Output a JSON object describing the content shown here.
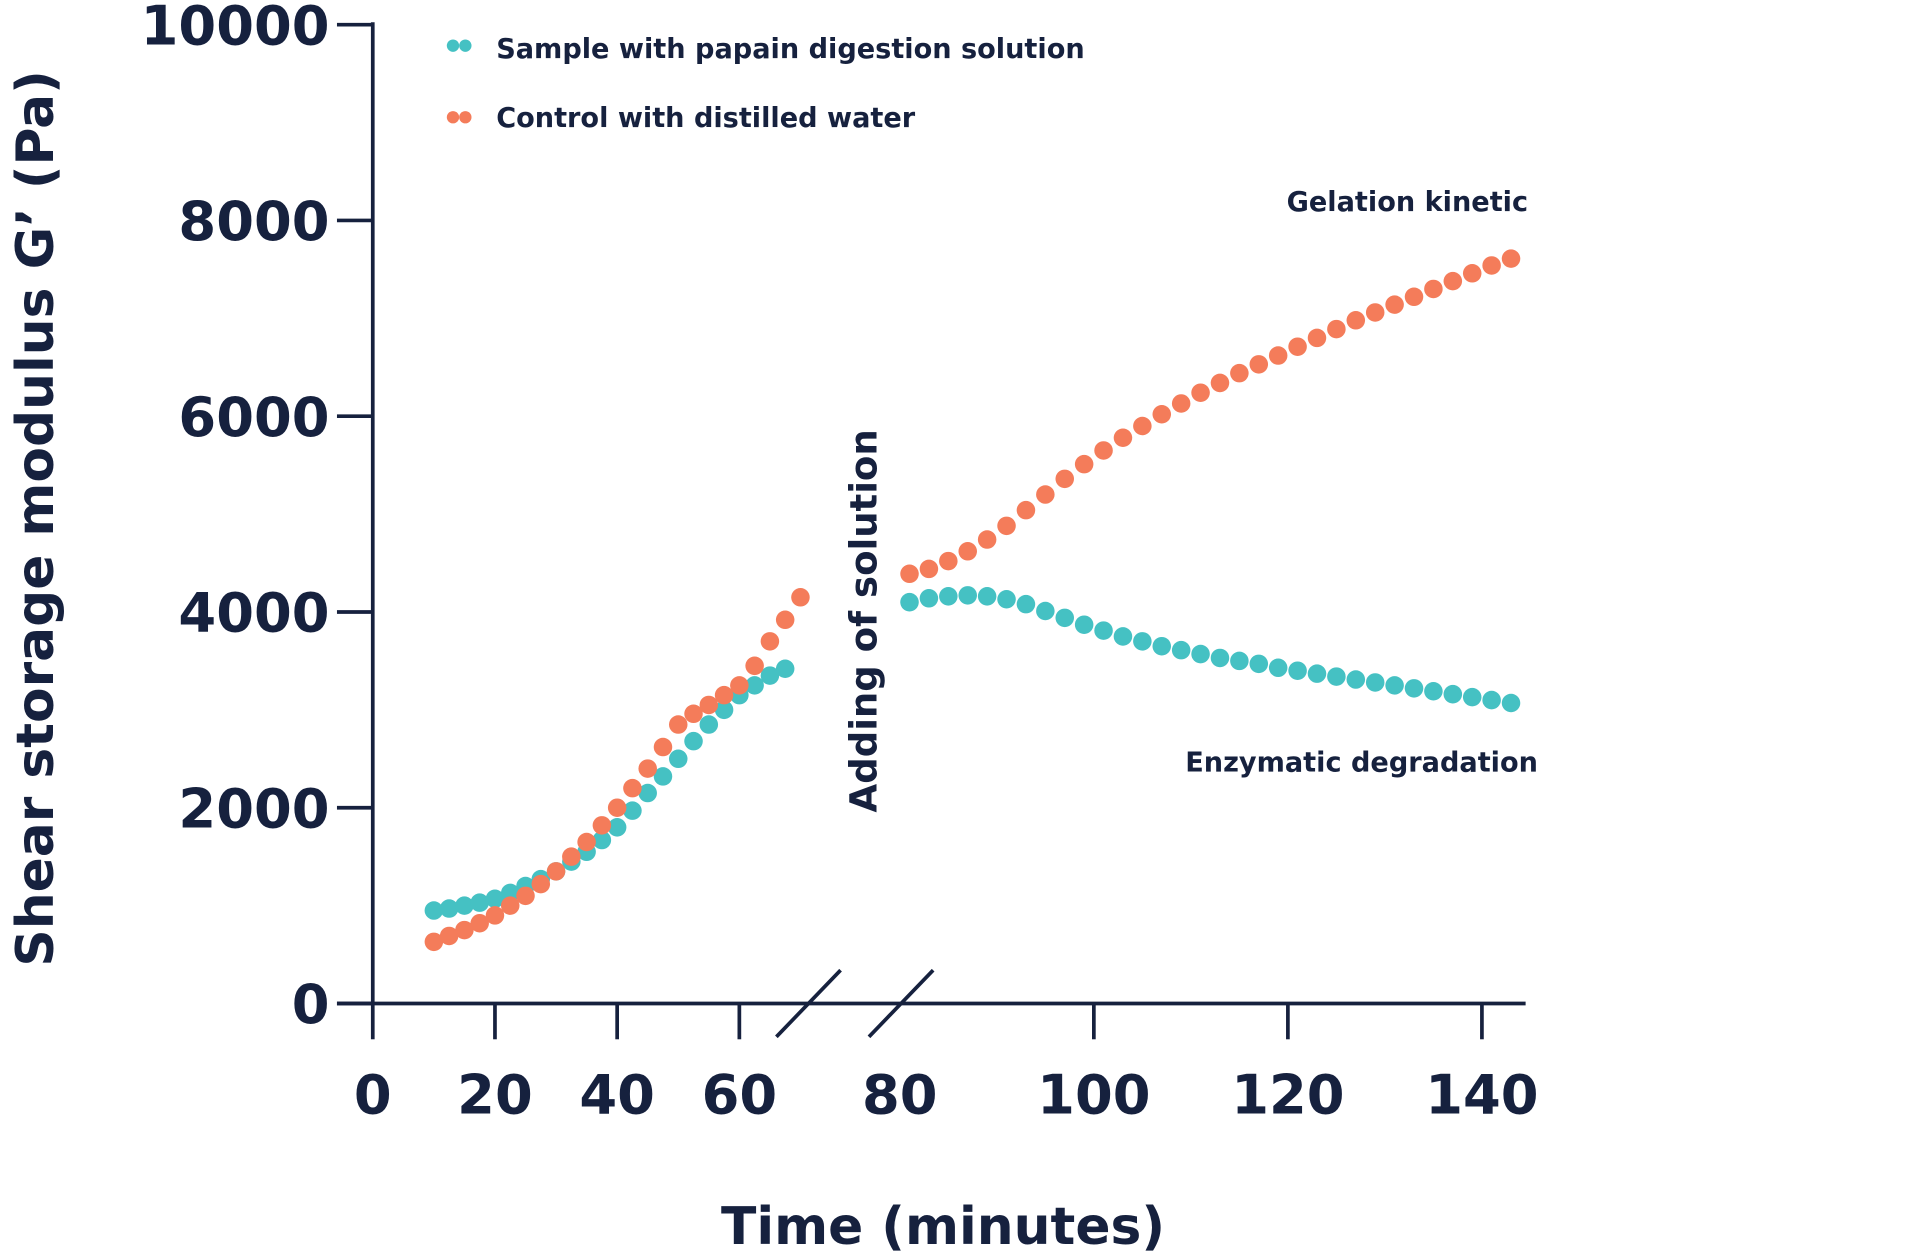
{
  "chart_data": {
    "type": "scatter",
    "title": "",
    "xlabel": "Time (minutes)",
    "ylabel": "Shear storage modulus G’ (Pa)",
    "xlim": [
      0,
      145
    ],
    "ylim": [
      0,
      10000
    ],
    "axis_break": [
      70,
      80
    ],
    "grid": false,
    "legend_position": "top-left",
    "x_ticks": [
      0,
      20,
      40,
      60,
      80,
      100,
      120,
      140
    ],
    "y_ticks": [
      0,
      2000,
      4000,
      6000,
      8000,
      10000
    ],
    "annotations": {
      "break_label": "Adding of solution",
      "gelation": "Gelation kinetic",
      "degradation": "Enzymatic degradation"
    },
    "colors": {
      "axis": "#16213e",
      "sample": "#45c1c3",
      "control": "#f47c5a"
    },
    "series": [
      {
        "name": "Sample with papain digestion solution",
        "color": "#45c1c3",
        "x": [
          10,
          12.5,
          15,
          17.5,
          20,
          22.5,
          25,
          27.5,
          30,
          32.5,
          35,
          37.5,
          40,
          42.5,
          45,
          47.5,
          50,
          52.5,
          55,
          57.5,
          60,
          62.5,
          65,
          67.5,
          81,
          83,
          85,
          87,
          89,
          91,
          93,
          95,
          97,
          99,
          101,
          103,
          105,
          107,
          109,
          111,
          113,
          115,
          117,
          119,
          121,
          123,
          125,
          127,
          129,
          131,
          133,
          135,
          137,
          139,
          141,
          143
        ],
        "y": [
          950,
          970,
          1000,
          1030,
          1070,
          1130,
          1200,
          1270,
          1350,
          1450,
          1550,
          1670,
          1800,
          1970,
          2150,
          2320,
          2500,
          2680,
          2850,
          3000,
          3150,
          3250,
          3350,
          3420,
          4100,
          4140,
          4160,
          4170,
          4160,
          4130,
          4080,
          4010,
          3940,
          3870,
          3810,
          3750,
          3700,
          3650,
          3610,
          3570,
          3530,
          3500,
          3470,
          3430,
          3400,
          3370,
          3340,
          3310,
          3280,
          3250,
          3220,
          3190,
          3160,
          3130,
          3100,
          3070
        ]
      },
      {
        "name": "Control with distilled water",
        "color": "#f47c5a",
        "x": [
          10,
          12.5,
          15,
          17.5,
          20,
          22.5,
          25,
          27.5,
          30,
          32.5,
          35,
          37.5,
          40,
          42.5,
          45,
          47.5,
          50,
          52.5,
          55,
          57.5,
          60,
          62.5,
          65,
          67.5,
          70,
          81,
          83,
          85,
          87,
          89,
          91,
          93,
          95,
          97,
          99,
          101,
          103,
          105,
          107,
          109,
          111,
          113,
          115,
          117,
          119,
          121,
          123,
          125,
          127,
          129,
          131,
          133,
          135,
          137,
          139,
          141,
          143
        ],
        "y": [
          630,
          690,
          750,
          820,
          900,
          1000,
          1100,
          1220,
          1350,
          1500,
          1650,
          1820,
          2000,
          2200,
          2400,
          2620,
          2850,
          2960,
          3050,
          3150,
          3250,
          3450,
          3700,
          3920,
          4150,
          4390,
          4440,
          4520,
          4620,
          4740,
          4880,
          5040,
          5200,
          5360,
          5510,
          5650,
          5780,
          5900,
          6020,
          6130,
          6240,
          6340,
          6440,
          6530,
          6620,
          6710,
          6800,
          6890,
          6980,
          7060,
          7140,
          7220,
          7300,
          7380,
          7460,
          7540,
          7610
        ]
      }
    ]
  }
}
